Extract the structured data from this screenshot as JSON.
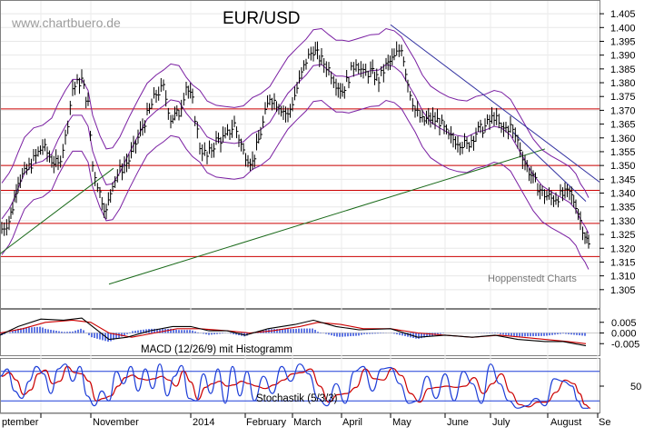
{
  "watermark": "www.chartbuero.de",
  "source": "Hoppenstedt Charts",
  "chart_data": [
    {
      "type": "candlestick",
      "title": "EUR/USD",
      "indicators": [
        "Bollinger Bands",
        "Horizontal support/resistance lines",
        "Trend lines"
      ],
      "y_ticks": [
        "1.405",
        "1.400",
        "1.395",
        "1.390",
        "1.385",
        "1.380",
        "1.375",
        "1.370",
        "1.365",
        "1.360",
        "1.355",
        "1.350",
        "1.345",
        "1.340",
        "1.335",
        "1.330",
        "1.325",
        "1.320",
        "1.315",
        "1.310",
        "1.305"
      ],
      "ylim": [
        1.3,
        1.408
      ],
      "x_ticks": [
        "ptember",
        "November",
        "2014",
        "February",
        "March",
        "April",
        "May",
        "June",
        "July",
        "August",
        "Se"
      ],
      "horizontal_levels": [
        1.3705,
        1.35,
        1.341,
        1.329,
        1.317
      ],
      "price_path": [
        {
          "x": 0,
          "y": 1.327
        },
        {
          "x": 8,
          "y": 1.33
        },
        {
          "x": 12,
          "y": 1.335
        },
        {
          "x": 18,
          "y": 1.345
        },
        {
          "x": 25,
          "y": 1.347
        },
        {
          "x": 35,
          "y": 1.352
        },
        {
          "x": 45,
          "y": 1.357
        },
        {
          "x": 55,
          "y": 1.352
        },
        {
          "x": 62,
          "y": 1.35
        },
        {
          "x": 70,
          "y": 1.36
        },
        {
          "x": 78,
          "y": 1.378
        },
        {
          "x": 88,
          "y": 1.381
        },
        {
          "x": 95,
          "y": 1.372
        },
        {
          "x": 100,
          "y": 1.35
        },
        {
          "x": 108,
          "y": 1.34
        },
        {
          "x": 115,
          "y": 1.333
        },
        {
          "x": 122,
          "y": 1.344
        },
        {
          "x": 130,
          "y": 1.348
        },
        {
          "x": 140,
          "y": 1.352
        },
        {
          "x": 150,
          "y": 1.36
        },
        {
          "x": 160,
          "y": 1.368
        },
        {
          "x": 170,
          "y": 1.376
        },
        {
          "x": 178,
          "y": 1.378
        },
        {
          "x": 186,
          "y": 1.367
        },
        {
          "x": 195,
          "y": 1.369
        },
        {
          "x": 203,
          "y": 1.379
        },
        {
          "x": 210,
          "y": 1.373
        },
        {
          "x": 218,
          "y": 1.357
        },
        {
          "x": 226,
          "y": 1.353
        },
        {
          "x": 236,
          "y": 1.359
        },
        {
          "x": 246,
          "y": 1.36
        },
        {
          "x": 256,
          "y": 1.365
        },
        {
          "x": 266,
          "y": 1.355
        },
        {
          "x": 276,
          "y": 1.351
        },
        {
          "x": 285,
          "y": 1.362
        },
        {
          "x": 295,
          "y": 1.375
        },
        {
          "x": 305,
          "y": 1.372
        },
        {
          "x": 315,
          "y": 1.368
        },
        {
          "x": 325,
          "y": 1.378
        },
        {
          "x": 335,
          "y": 1.388
        },
        {
          "x": 343,
          "y": 1.392
        },
        {
          "x": 352,
          "y": 1.388
        },
        {
          "x": 360,
          "y": 1.385
        },
        {
          "x": 368,
          "y": 1.38
        },
        {
          "x": 375,
          "y": 1.377
        },
        {
          "x": 382,
          "y": 1.382
        },
        {
          "x": 390,
          "y": 1.388
        },
        {
          "x": 398,
          "y": 1.383
        },
        {
          "x": 406,
          "y": 1.384
        },
        {
          "x": 415,
          "y": 1.381
        },
        {
          "x": 423,
          "y": 1.386
        },
        {
          "x": 432,
          "y": 1.389
        },
        {
          "x": 440,
          "y": 1.393
        },
        {
          "x": 447,
          "y": 1.38
        },
        {
          "x": 455,
          "y": 1.37
        },
        {
          "x": 463,
          "y": 1.366
        },
        {
          "x": 472,
          "y": 1.367
        },
        {
          "x": 482,
          "y": 1.366
        },
        {
          "x": 492,
          "y": 1.36
        },
        {
          "x": 502,
          "y": 1.359
        },
        {
          "x": 512,
          "y": 1.357
        },
        {
          "x": 522,
          "y": 1.362
        },
        {
          "x": 532,
          "y": 1.364
        },
        {
          "x": 542,
          "y": 1.368
        },
        {
          "x": 550,
          "y": 1.363
        },
        {
          "x": 560,
          "y": 1.364
        },
        {
          "x": 568,
          "y": 1.359
        },
        {
          "x": 576,
          "y": 1.351
        },
        {
          "x": 585,
          "y": 1.345
        },
        {
          "x": 595,
          "y": 1.34
        },
        {
          "x": 605,
          "y": 1.338
        },
        {
          "x": 615,
          "y": 1.339
        },
        {
          "x": 625,
          "y": 1.34
        },
        {
          "x": 632,
          "y": 1.336
        },
        {
          "x": 637,
          "y": 1.33
        },
        {
          "x": 642,
          "y": 1.325
        },
        {
          "x": 646,
          "y": 1.321
        }
      ],
      "bollinger_offset": 0.013,
      "trend_lines": [
        {
          "color": "#1a6a1a",
          "from": {
            "x": 0,
            "y": 1.318
          },
          "to": {
            "x": 125,
            "y": 1.349
          }
        },
        {
          "color": "#1a6a1a",
          "from": {
            "x": 120,
            "y": 1.307
          },
          "to": {
            "x": 600,
            "y": 1.356
          }
        },
        {
          "color": "#3030a0",
          "from": {
            "x": 430,
            "y": 1.401
          },
          "to": {
            "x": 660,
            "y": 1.344
          }
        },
        {
          "color": "#3030a0",
          "from": {
            "x": 565,
            "y": 1.362
          },
          "to": {
            "x": 645,
            "y": 1.337
          }
        }
      ],
      "colors": {
        "price": "#000000",
        "bollinger": "#7a1fa2",
        "levels": "#cc0000"
      }
    },
    {
      "type": "line",
      "title": "MACD (12/26/9) mit Histogramm",
      "y_ticks": [
        "0.005",
        "0.000",
        "-0.005"
      ],
      "ylim": [
        -0.01,
        0.01
      ],
      "series": [
        {
          "name": "MACD",
          "color": "#000000"
        },
        {
          "name": "Signal",
          "color": "#cc0000"
        },
        {
          "name": "Histogramm",
          "color": "#1f3fd8"
        }
      ],
      "macd": [
        {
          "x": 0,
          "y": -0.001
        },
        {
          "x": 20,
          "y": 0.003
        },
        {
          "x": 45,
          "y": 0.0065
        },
        {
          "x": 70,
          "y": 0.006
        },
        {
          "x": 90,
          "y": 0.007
        },
        {
          "x": 105,
          "y": 0.002
        },
        {
          "x": 120,
          "y": -0.003
        },
        {
          "x": 140,
          "y": -0.002
        },
        {
          "x": 165,
          "y": 0.001
        },
        {
          "x": 190,
          "y": 0.003
        },
        {
          "x": 210,
          "y": 0.003
        },
        {
          "x": 230,
          "y": 0.001
        },
        {
          "x": 250,
          "y": 0.001
        },
        {
          "x": 270,
          "y": -0.001
        },
        {
          "x": 295,
          "y": 0.002
        },
        {
          "x": 325,
          "y": 0.004
        },
        {
          "x": 345,
          "y": 0.006
        },
        {
          "x": 370,
          "y": 0.003
        },
        {
          "x": 395,
          "y": 0.0015
        },
        {
          "x": 430,
          "y": 0.002
        },
        {
          "x": 460,
          "y": -0.002
        },
        {
          "x": 490,
          "y": -0.001
        },
        {
          "x": 520,
          "y": -0.002
        },
        {
          "x": 545,
          "y": -0.001
        },
        {
          "x": 570,
          "y": -0.003
        },
        {
          "x": 600,
          "y": -0.004
        },
        {
          "x": 620,
          "y": -0.004
        },
        {
          "x": 645,
          "y": -0.006
        }
      ],
      "signal": [
        {
          "x": 0,
          "y": 0.0
        },
        {
          "x": 25,
          "y": 0.002
        },
        {
          "x": 50,
          "y": 0.005
        },
        {
          "x": 80,
          "y": 0.006
        },
        {
          "x": 100,
          "y": 0.005
        },
        {
          "x": 120,
          "y": 0.0
        },
        {
          "x": 145,
          "y": -0.002
        },
        {
          "x": 170,
          "y": 0.0
        },
        {
          "x": 195,
          "y": 0.002
        },
        {
          "x": 220,
          "y": 0.002
        },
        {
          "x": 250,
          "y": 0.001
        },
        {
          "x": 275,
          "y": 0.0
        },
        {
          "x": 300,
          "y": 0.001
        },
        {
          "x": 330,
          "y": 0.003
        },
        {
          "x": 350,
          "y": 0.005
        },
        {
          "x": 375,
          "y": 0.004
        },
        {
          "x": 400,
          "y": 0.002
        },
        {
          "x": 430,
          "y": 0.002
        },
        {
          "x": 460,
          "y": 0.0
        },
        {
          "x": 490,
          "y": -0.001
        },
        {
          "x": 520,
          "y": -0.002
        },
        {
          "x": 550,
          "y": -0.001
        },
        {
          "x": 575,
          "y": -0.002
        },
        {
          "x": 600,
          "y": -0.003
        },
        {
          "x": 625,
          "y": -0.004
        },
        {
          "x": 645,
          "y": -0.005
        }
      ]
    },
    {
      "type": "line",
      "title": "Stochastik (5/3/3)",
      "y_ticks": [
        "50"
      ],
      "ylim": [
        0,
        100
      ],
      "reference_levels": [
        80,
        20
      ],
      "series": [
        {
          "name": "%K",
          "color": "#1f3fd8"
        },
        {
          "name": "%D",
          "color": "#cc0000"
        }
      ],
      "stoch": [
        {
          "x": 0,
          "y": 70
        },
        {
          "x": 8,
          "y": 85
        },
        {
          "x": 16,
          "y": 40
        },
        {
          "x": 24,
          "y": 25
        },
        {
          "x": 32,
          "y": 60
        },
        {
          "x": 40,
          "y": 90
        },
        {
          "x": 48,
          "y": 75
        },
        {
          "x": 56,
          "y": 35
        },
        {
          "x": 64,
          "y": 85
        },
        {
          "x": 72,
          "y": 95
        },
        {
          "x": 80,
          "y": 60
        },
        {
          "x": 88,
          "y": 90
        },
        {
          "x": 96,
          "y": 30
        },
        {
          "x": 104,
          "y": 10
        },
        {
          "x": 112,
          "y": 40
        },
        {
          "x": 120,
          "y": 20
        },
        {
          "x": 128,
          "y": 80
        },
        {
          "x": 136,
          "y": 55
        },
        {
          "x": 144,
          "y": 90
        },
        {
          "x": 152,
          "y": 40
        },
        {
          "x": 160,
          "y": 85
        },
        {
          "x": 168,
          "y": 45
        },
        {
          "x": 176,
          "y": 95
        },
        {
          "x": 184,
          "y": 30
        },
        {
          "x": 192,
          "y": 70
        },
        {
          "x": 200,
          "y": 92
        },
        {
          "x": 208,
          "y": 25
        },
        {
          "x": 216,
          "y": 20
        },
        {
          "x": 224,
          "y": 75
        },
        {
          "x": 232,
          "y": 35
        },
        {
          "x": 240,
          "y": 85
        },
        {
          "x": 248,
          "y": 15
        },
        {
          "x": 256,
          "y": 90
        },
        {
          "x": 264,
          "y": 30
        },
        {
          "x": 272,
          "y": 80
        },
        {
          "x": 280,
          "y": 20
        },
        {
          "x": 290,
          "y": 70
        },
        {
          "x": 300,
          "y": 35
        },
        {
          "x": 310,
          "y": 90
        },
        {
          "x": 320,
          "y": 60
        },
        {
          "x": 330,
          "y": 95
        },
        {
          "x": 340,
          "y": 75
        },
        {
          "x": 350,
          "y": 25
        },
        {
          "x": 360,
          "y": 10
        },
        {
          "x": 370,
          "y": 55
        },
        {
          "x": 380,
          "y": 15
        },
        {
          "x": 390,
          "y": 80
        },
        {
          "x": 400,
          "y": 90
        },
        {
          "x": 410,
          "y": 40
        },
        {
          "x": 420,
          "y": 85
        },
        {
          "x": 430,
          "y": 88
        },
        {
          "x": 440,
          "y": 55
        },
        {
          "x": 450,
          "y": 15
        },
        {
          "x": 460,
          "y": 20
        },
        {
          "x": 470,
          "y": 70
        },
        {
          "x": 480,
          "y": 25
        },
        {
          "x": 490,
          "y": 75
        },
        {
          "x": 500,
          "y": 20
        },
        {
          "x": 510,
          "y": 80
        },
        {
          "x": 520,
          "y": 55
        },
        {
          "x": 530,
          "y": 15
        },
        {
          "x": 540,
          "y": 95
        },
        {
          "x": 550,
          "y": 55
        },
        {
          "x": 560,
          "y": 20
        },
        {
          "x": 570,
          "y": 5
        },
        {
          "x": 580,
          "y": 10
        },
        {
          "x": 590,
          "y": 25
        },
        {
          "x": 600,
          "y": 10
        },
        {
          "x": 610,
          "y": 65
        },
        {
          "x": 620,
          "y": 60
        },
        {
          "x": 630,
          "y": 50
        },
        {
          "x": 636,
          "y": 20
        },
        {
          "x": 642,
          "y": 5
        },
        {
          "x": 648,
          "y": 5
        }
      ]
    }
  ]
}
